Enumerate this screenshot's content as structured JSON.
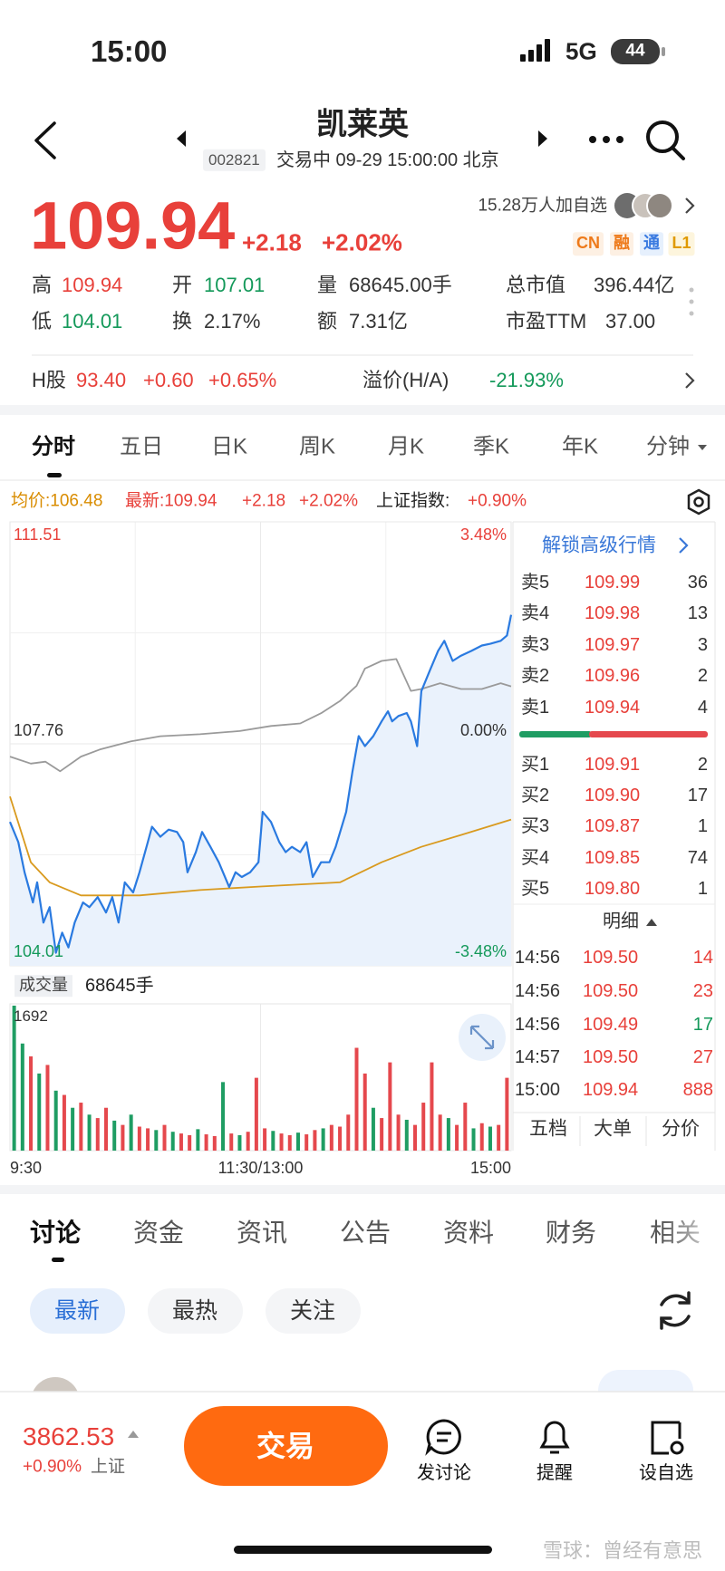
{
  "status_bar": {
    "time": "15:00",
    "network": "5G",
    "battery": "44"
  },
  "header": {
    "title": "凯莱英",
    "code": "002821",
    "status": "交易中 09-29 15:00:00 北京"
  },
  "quote": {
    "price": "109.94",
    "change": "+2.18",
    "change_pct": "+2.02%",
    "followers": "15.28万人加自选",
    "tags": [
      "CN",
      "融",
      "通",
      "L1"
    ],
    "stats": [
      {
        "label": "高",
        "value": "109.94"
      },
      {
        "label": "开",
        "value": "107.01"
      },
      {
        "label": "量",
        "value": "68645.00手"
      },
      {
        "label": "总市值",
        "value": "396.44亿"
      },
      {
        "label": "低",
        "value": "104.01"
      },
      {
        "label": "换",
        "value": "2.17%"
      },
      {
        "label": "额",
        "value": "7.31亿"
      },
      {
        "label": "市盈TTM",
        "value": "37.00"
      }
    ],
    "h_share": {
      "label": "H股",
      "price": "93.40",
      "change": "+0.60",
      "change_pct": "+0.65%",
      "premium_label": "溢价(H/A)",
      "premium": "-21.93%"
    }
  },
  "chart_tabs": [
    "分时",
    "五日",
    "日K",
    "周K",
    "月K",
    "季K",
    "年K",
    "分钟"
  ],
  "info_line": {
    "avg": "均价:106.48",
    "latest": "最新:109.94",
    "change": "+2.18",
    "change_pct": "+2.02%",
    "index_label": "上证指数:",
    "index_change": "+0.90%"
  },
  "chart_data": [
    {
      "type": "line",
      "grid": true,
      "xlim": [
        0,
        240
      ],
      "xticks": [
        {
          "value": 0,
          "label": "9:30"
        },
        {
          "value": 120,
          "label": "11:30/13:00"
        },
        {
          "value": 240,
          "label": "15:00"
        }
      ],
      "ylim": [
        104.01,
        111.51
      ],
      "yticks": [
        104.01,
        107.76,
        111.51
      ],
      "y2lim": [
        -3.48,
        3.48
      ],
      "y2ticks": [
        {
          "value": -3.48,
          "label": "-3.48%"
        },
        {
          "value": 0,
          "label": "0.00%"
        },
        {
          "value": 3.48,
          "label": "3.48%"
        }
      ],
      "series": [
        {
          "color": "#2a7ae0",
          "fill": "#eaf2fc",
          "x": [
            0,
            4,
            7,
            11,
            13,
            16,
            19,
            22,
            25,
            28,
            31,
            35,
            38,
            42,
            46,
            49,
            52,
            55,
            59,
            62,
            66,
            68,
            72,
            76,
            80,
            83,
            85,
            89,
            92,
            96,
            100,
            105,
            108,
            111,
            115,
            119,
            121,
            125,
            129,
            132,
            135,
            139,
            142,
            145,
            149,
            153,
            156,
            161,
            164,
            167,
            170,
            174,
            178,
            181,
            183,
            186,
            190,
            192,
            195,
            197,
            201,
            205,
            208,
            212,
            216,
            221,
            226,
            230,
            235,
            238,
            240
          ],
          "values": [
            106.44,
            106.1,
            105.59,
            105.08,
            105.42,
            104.74,
            105.0,
            104.23,
            104.57,
            104.32,
            104.74,
            105.08,
            105.0,
            105.17,
            104.91,
            105.17,
            104.74,
            105.42,
            105.25,
            105.59,
            106.1,
            106.36,
            106.19,
            106.31,
            106.27,
            106.1,
            105.59,
            105.93,
            106.27,
            106.02,
            105.76,
            105.34,
            105.59,
            105.51,
            105.59,
            105.76,
            106.61,
            106.44,
            106.1,
            105.93,
            106.02,
            105.93,
            106.1,
            105.51,
            105.76,
            105.76,
            106.02,
            106.61,
            107.29,
            107.89,
            107.72,
            107.89,
            108.14,
            108.31,
            108.14,
            108.23,
            108.28,
            108.14,
            107.72,
            108.65,
            108.99,
            109.33,
            109.5,
            109.16,
            109.25,
            109.33,
            109.42,
            109.45,
            109.5,
            109.59,
            109.94
          ]
        },
        {
          "color": "#d99a1e",
          "x": [
            0,
            10,
            19,
            34,
            62,
            91,
            120,
            158,
            178,
            197,
            216,
            240
          ],
          "values": [
            106.87,
            105.76,
            105.42,
            105.2,
            105.2,
            105.29,
            105.35,
            105.42,
            105.76,
            106.02,
            106.22,
            106.48
          ]
        },
        {
          "color": "#9a9a9a",
          "axis": "y2",
          "x": [
            0,
            10,
            17,
            24,
            34,
            43,
            58,
            72,
            91,
            110,
            125,
            139,
            149,
            158,
            166,
            170,
            178,
            185,
            192,
            197,
            206,
            216,
            226,
            235,
            240
          ],
          "values": [
            -0.2,
            -0.31,
            -0.28,
            -0.43,
            -0.2,
            -0.09,
            0.04,
            0.12,
            0.15,
            0.2,
            0.28,
            0.32,
            0.48,
            0.67,
            0.91,
            1.18,
            1.3,
            1.33,
            0.83,
            0.86,
            0.95,
            0.86,
            0.86,
            0.95,
            0.9
          ]
        }
      ]
    },
    {
      "type": "bar",
      "title": "成交量",
      "subtitle": "68645手",
      "xlim": [
        0,
        240
      ],
      "ylim": [
        0,
        1692
      ],
      "yticks": [
        1692
      ],
      "x": [
        2,
        6,
        10,
        14,
        18,
        22,
        26,
        30,
        34,
        38,
        42,
        46,
        50,
        54,
        58,
        62,
        66,
        70,
        74,
        78,
        82,
        86,
        90,
        94,
        98,
        102,
        106,
        110,
        114,
        118,
        122,
        126,
        130,
        134,
        138,
        142,
        146,
        150,
        154,
        158,
        162,
        166,
        170,
        174,
        178,
        182,
        186,
        190,
        194,
        198,
        202,
        206,
        210,
        214,
        218,
        222,
        226,
        230,
        234,
        238
      ],
      "values": [
        1692,
        1250,
        1100,
        900,
        1000,
        700,
        650,
        500,
        560,
        420,
        380,
        500,
        350,
        300,
        420,
        280,
        260,
        240,
        300,
        220,
        200,
        180,
        250,
        190,
        170,
        800,
        200,
        180,
        220,
        850,
        260,
        230,
        200,
        180,
        210,
        190,
        240,
        260,
        300,
        280,
        420,
        1200,
        900,
        500,
        380,
        1030,
        420,
        360,
        300,
        560,
        1030,
        420,
        380,
        300,
        560,
        260,
        320,
        280,
        300,
        850
      ],
      "colors": [
        "#1f9d63",
        "#1f9d63",
        "#e5484d",
        "#1f9d63",
        "#e5484d",
        "#1f9d63",
        "#e5484d",
        "#1f9d63",
        "#e5484d",
        "#1f9d63",
        "#e5484d",
        "#e5484d",
        "#1f9d63",
        "#e5484d",
        "#1f9d63",
        "#e5484d",
        "#e5484d",
        "#1f9d63",
        "#e5484d",
        "#1f9d63",
        "#e5484d",
        "#e5484d",
        "#1f9d63",
        "#e5484d",
        "#e5484d",
        "#1f9d63",
        "#e5484d",
        "#1f9d63",
        "#e5484d",
        "#e5484d",
        "#e5484d",
        "#1f9d63",
        "#e5484d",
        "#e5484d",
        "#1f9d63",
        "#e5484d",
        "#e5484d",
        "#1f9d63",
        "#e5484d",
        "#e5484d",
        "#e5484d",
        "#e5484d",
        "#e5484d",
        "#1f9d63",
        "#e5484d",
        "#e5484d",
        "#e5484d",
        "#1f9d63",
        "#e5484d",
        "#e5484d",
        "#e5484d",
        "#e5484d",
        "#1f9d63",
        "#e5484d",
        "#e5484d",
        "#1f9d63",
        "#e5484d",
        "#1f9d63",
        "#e5484d",
        "#e5484d"
      ]
    }
  ],
  "order_book": {
    "unlock": "解锁高级行情",
    "asks": [
      {
        "label": "卖5",
        "price": "109.99",
        "qty": "36"
      },
      {
        "label": "卖4",
        "price": "109.98",
        "qty": "13"
      },
      {
        "label": "卖3",
        "price": "109.97",
        "qty": "3"
      },
      {
        "label": "卖2",
        "price": "109.96",
        "qty": "2"
      },
      {
        "label": "卖1",
        "price": "109.94",
        "qty": "4"
      }
    ],
    "bids": [
      {
        "label": "买1",
        "price": "109.91",
        "qty": "2"
      },
      {
        "label": "买2",
        "price": "109.90",
        "qty": "17"
      },
      {
        "label": "买3",
        "price": "109.87",
        "qty": "1"
      },
      {
        "label": "买4",
        "price": "109.85",
        "qty": "74"
      },
      {
        "label": "买5",
        "price": "109.80",
        "qty": "1"
      }
    ]
  },
  "trades": {
    "title": "明细",
    "rows": [
      [
        "14:56",
        "109.50",
        "14"
      ],
      [
        "14:56",
        "109.50",
        "23"
      ],
      [
        "14:56",
        "109.49",
        "17"
      ],
      [
        "14:57",
        "109.50",
        "27"
      ],
      [
        "15:00",
        "109.94",
        "888"
      ]
    ]
  },
  "panel_tabs": [
    "五档",
    "大单",
    "分价"
  ],
  "feed_tabs": [
    "讨论",
    "资金",
    "资讯",
    "公告",
    "资料",
    "财务",
    "相关"
  ],
  "filters": [
    "最新",
    "最热",
    "关注"
  ],
  "bottom_bar": {
    "index_value": "3862.53",
    "index_change": "+0.90%",
    "index_name": "上证",
    "trade": "交易",
    "actions": [
      "发讨论",
      "提醒",
      "设自选"
    ]
  },
  "watermark": "雪球：曾经有意思"
}
